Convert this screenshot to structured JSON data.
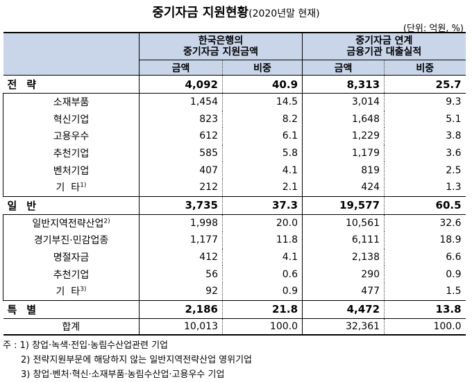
{
  "title": {
    "main": "중기자금 지원현황",
    "sub": "(2020년말 현재)"
  },
  "unit": "(단위: 억원, %)",
  "headers": {
    "group1": [
      "한국은행의",
      "중기자금 지원금액"
    ],
    "group2": [
      "중기자금 연계",
      "금융기관 대출실적"
    ],
    "amount": "금액",
    "ratio": "비중"
  },
  "rows": [
    {
      "type": "cat",
      "label": "전략",
      "a1": "4,092",
      "r1": "40.9",
      "a2": "8,313",
      "r2": "25.7"
    },
    {
      "type": "sub",
      "label": "소재부품",
      "a1": "1,454",
      "r1": "14.5",
      "a2": "3,014",
      "r2": "9.3"
    },
    {
      "type": "sub",
      "label": "혁신기업",
      "a1": "823",
      "r1": "8.2",
      "a2": "1,648",
      "r2": "5.1"
    },
    {
      "type": "sub",
      "label": "고용우수",
      "a1": "612",
      "r1": "6.1",
      "a2": "1,229",
      "r2": "3.8"
    },
    {
      "type": "sub",
      "label": "추천기업",
      "a1": "585",
      "r1": "5.8",
      "a2": "1,179",
      "r2": "3.6"
    },
    {
      "type": "sub",
      "label": "벤처기업",
      "a1": "407",
      "r1": "4.1",
      "a2": "819",
      "r2": "2.5"
    },
    {
      "type": "sub",
      "label": "기  타",
      "sup": "1)",
      "a1": "212",
      "r1": "2.1",
      "a2": "424",
      "r2": "1.3"
    },
    {
      "type": "cat",
      "label": "일반",
      "a1": "3,735",
      "r1": "37.3",
      "a2": "19,577",
      "r2": "60.5"
    },
    {
      "type": "sub",
      "label": "일반지역전략산업",
      "sup": "2)",
      "a1": "1,998",
      "r1": "20.0",
      "a2": "10,561",
      "r2": "32.6"
    },
    {
      "type": "sub",
      "label": "경기부진·민감업종",
      "a1": "1,177",
      "r1": "11.8",
      "a2": "6,111",
      "r2": "18.9"
    },
    {
      "type": "sub",
      "label": "명절자금",
      "a1": "412",
      "r1": "4.1",
      "a2": "2,138",
      "r2": "6.6"
    },
    {
      "type": "sub",
      "label": "추천기업",
      "a1": "56",
      "r1": "0.6",
      "a2": "290",
      "r2": "0.9"
    },
    {
      "type": "sub",
      "label": "기  타",
      "sup": "3)",
      "a1": "92",
      "r1": "0.9",
      "a2": "477",
      "r2": "1.5"
    },
    {
      "type": "cat",
      "label": "특별",
      "a1": "2,186",
      "r1": "21.8",
      "a2": "4,472",
      "r2": "13.8"
    },
    {
      "type": "total",
      "label": "합계",
      "a1": "10,013",
      "r1": "100.0",
      "a2": "32,361",
      "r2": "100.0"
    }
  ],
  "notes": [
    "주 : 1) 창업·녹색·전입·농림수산업관련 기업",
    "2) 전략지원부문에 해당하지 않는 일반지역전략산업 영위기업",
    "3) 창업·벤처·혁신·소재부품·농림수산업·고용우수 기업"
  ]
}
